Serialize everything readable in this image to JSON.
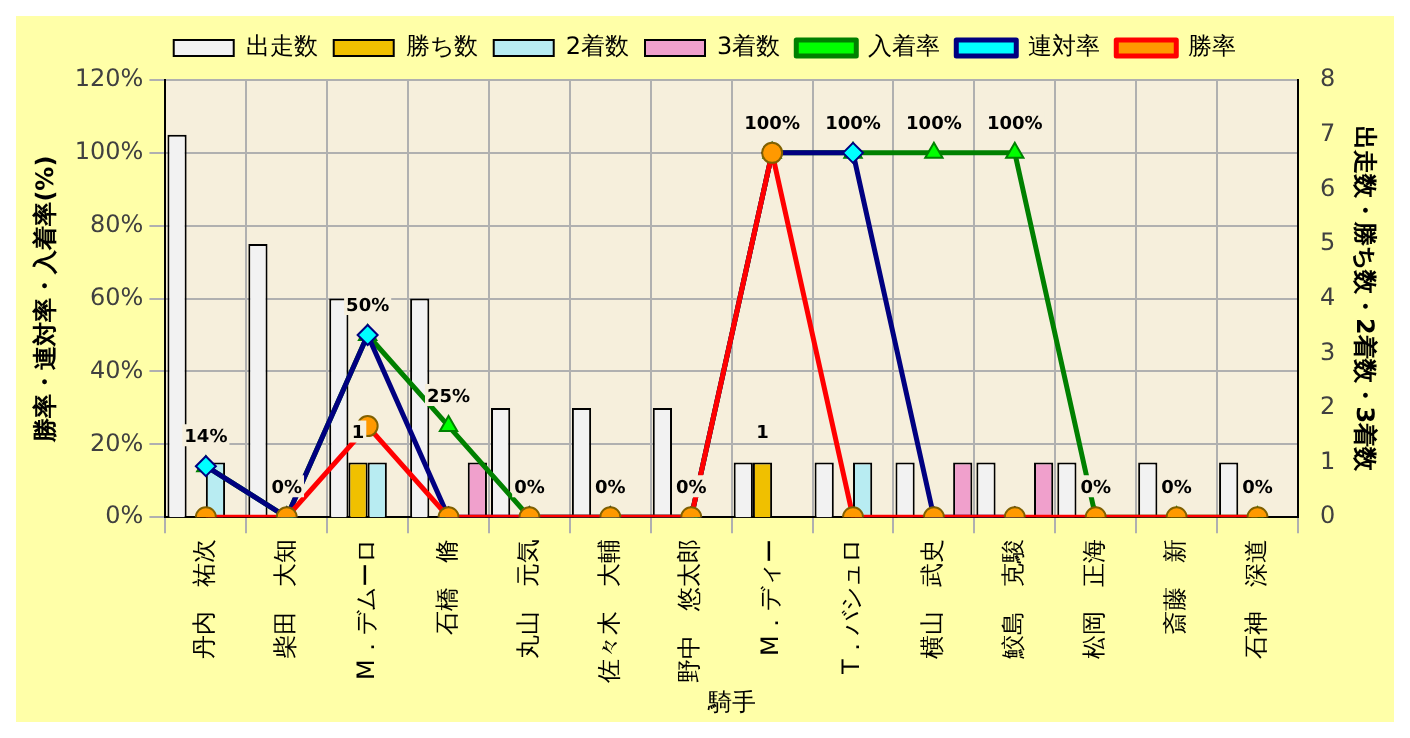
{
  "chart_data": {
    "type": "bar",
    "xlabel": "騎手",
    "ylabel": "勝率・連対率・入着率(%)",
    "y2label": "出走数・勝ち数・2着数・3着数",
    "categories": [
      "丹内　祐次",
      "柴田　大知",
      "M．デムーロ",
      "石橋　脩",
      "丸山　元気",
      "佐々木　大輔",
      "野中　悠太郎",
      "M．ディー",
      "T．バシュロ",
      "横山　武史",
      "鮫島　克駿",
      "松岡　正海",
      "斎藤　新",
      "石神　深道"
    ],
    "series": [
      {
        "name": "出走数",
        "axis": "y2",
        "color": "#f2f2f2",
        "values": [
          7,
          5,
          4,
          4,
          2,
          2,
          2,
          1,
          1,
          1,
          1,
          1,
          1,
          1
        ]
      },
      {
        "name": "勝ち数",
        "axis": "y2",
        "color": "#f0c000",
        "values": [
          0,
          0,
          1,
          0,
          0,
          0,
          0,
          1,
          0,
          0,
          0,
          0,
          0,
          0
        ],
        "value_labels": [
          null,
          null,
          "1",
          null,
          null,
          null,
          null,
          "1",
          null,
          null,
          null,
          null,
          null,
          null
        ]
      },
      {
        "name": "2着数",
        "axis": "y2",
        "color": "#b8ecf2",
        "values": [
          1,
          0,
          1,
          0,
          0,
          0,
          0,
          0,
          1,
          0,
          0,
          0,
          0,
          0
        ]
      },
      {
        "name": "3着数",
        "axis": "y2",
        "color": "#f0a0cc",
        "values": [
          0,
          0,
          0,
          1,
          0,
          0,
          0,
          0,
          0,
          1,
          1,
          0,
          0,
          0
        ]
      },
      {
        "name": "入着率",
        "type": "line",
        "color": "#008000",
        "marker": "triangle",
        "values": [
          14,
          0,
          50,
          25,
          0,
          0,
          0,
          100,
          100,
          100,
          100,
          0,
          0,
          0
        ],
        "value_labels": [
          "14%",
          "0%",
          "50%",
          "25%",
          "0%",
          "0%",
          "0%",
          "100%",
          "100%",
          "100%",
          "100%",
          "0%",
          "0%",
          "0%"
        ]
      },
      {
        "name": "連対率",
        "type": "line",
        "color": "#000080",
        "marker": "diamond",
        "values": [
          14,
          0,
          50,
          0,
          0,
          0,
          0,
          100,
          100,
          0,
          0,
          null,
          null,
          null
        ]
      },
      {
        "name": "勝率",
        "type": "line",
        "color": "#ff0000",
        "marker": "circle",
        "values": [
          0,
          0,
          25,
          0,
          0,
          0,
          0,
          100,
          0,
          0,
          0,
          0,
          0,
          0
        ]
      }
    ],
    "ylim": [
      0,
      120
    ],
    "yticks": [
      {
        "value": 0,
        "label": "0%"
      },
      {
        "value": 20,
        "label": "20%"
      },
      {
        "value": 40,
        "label": "40%"
      },
      {
        "value": 60,
        "label": "60%"
      },
      {
        "value": 80,
        "label": "80%"
      },
      {
        "value": 100,
        "label": "100%"
      },
      {
        "value": 120,
        "label": "120%"
      }
    ],
    "y2lim": [
      0,
      8
    ],
    "y2ticks": [
      0,
      1,
      2,
      3,
      4,
      5,
      6,
      7,
      8
    ],
    "grid": true,
    "legend": "top"
  }
}
